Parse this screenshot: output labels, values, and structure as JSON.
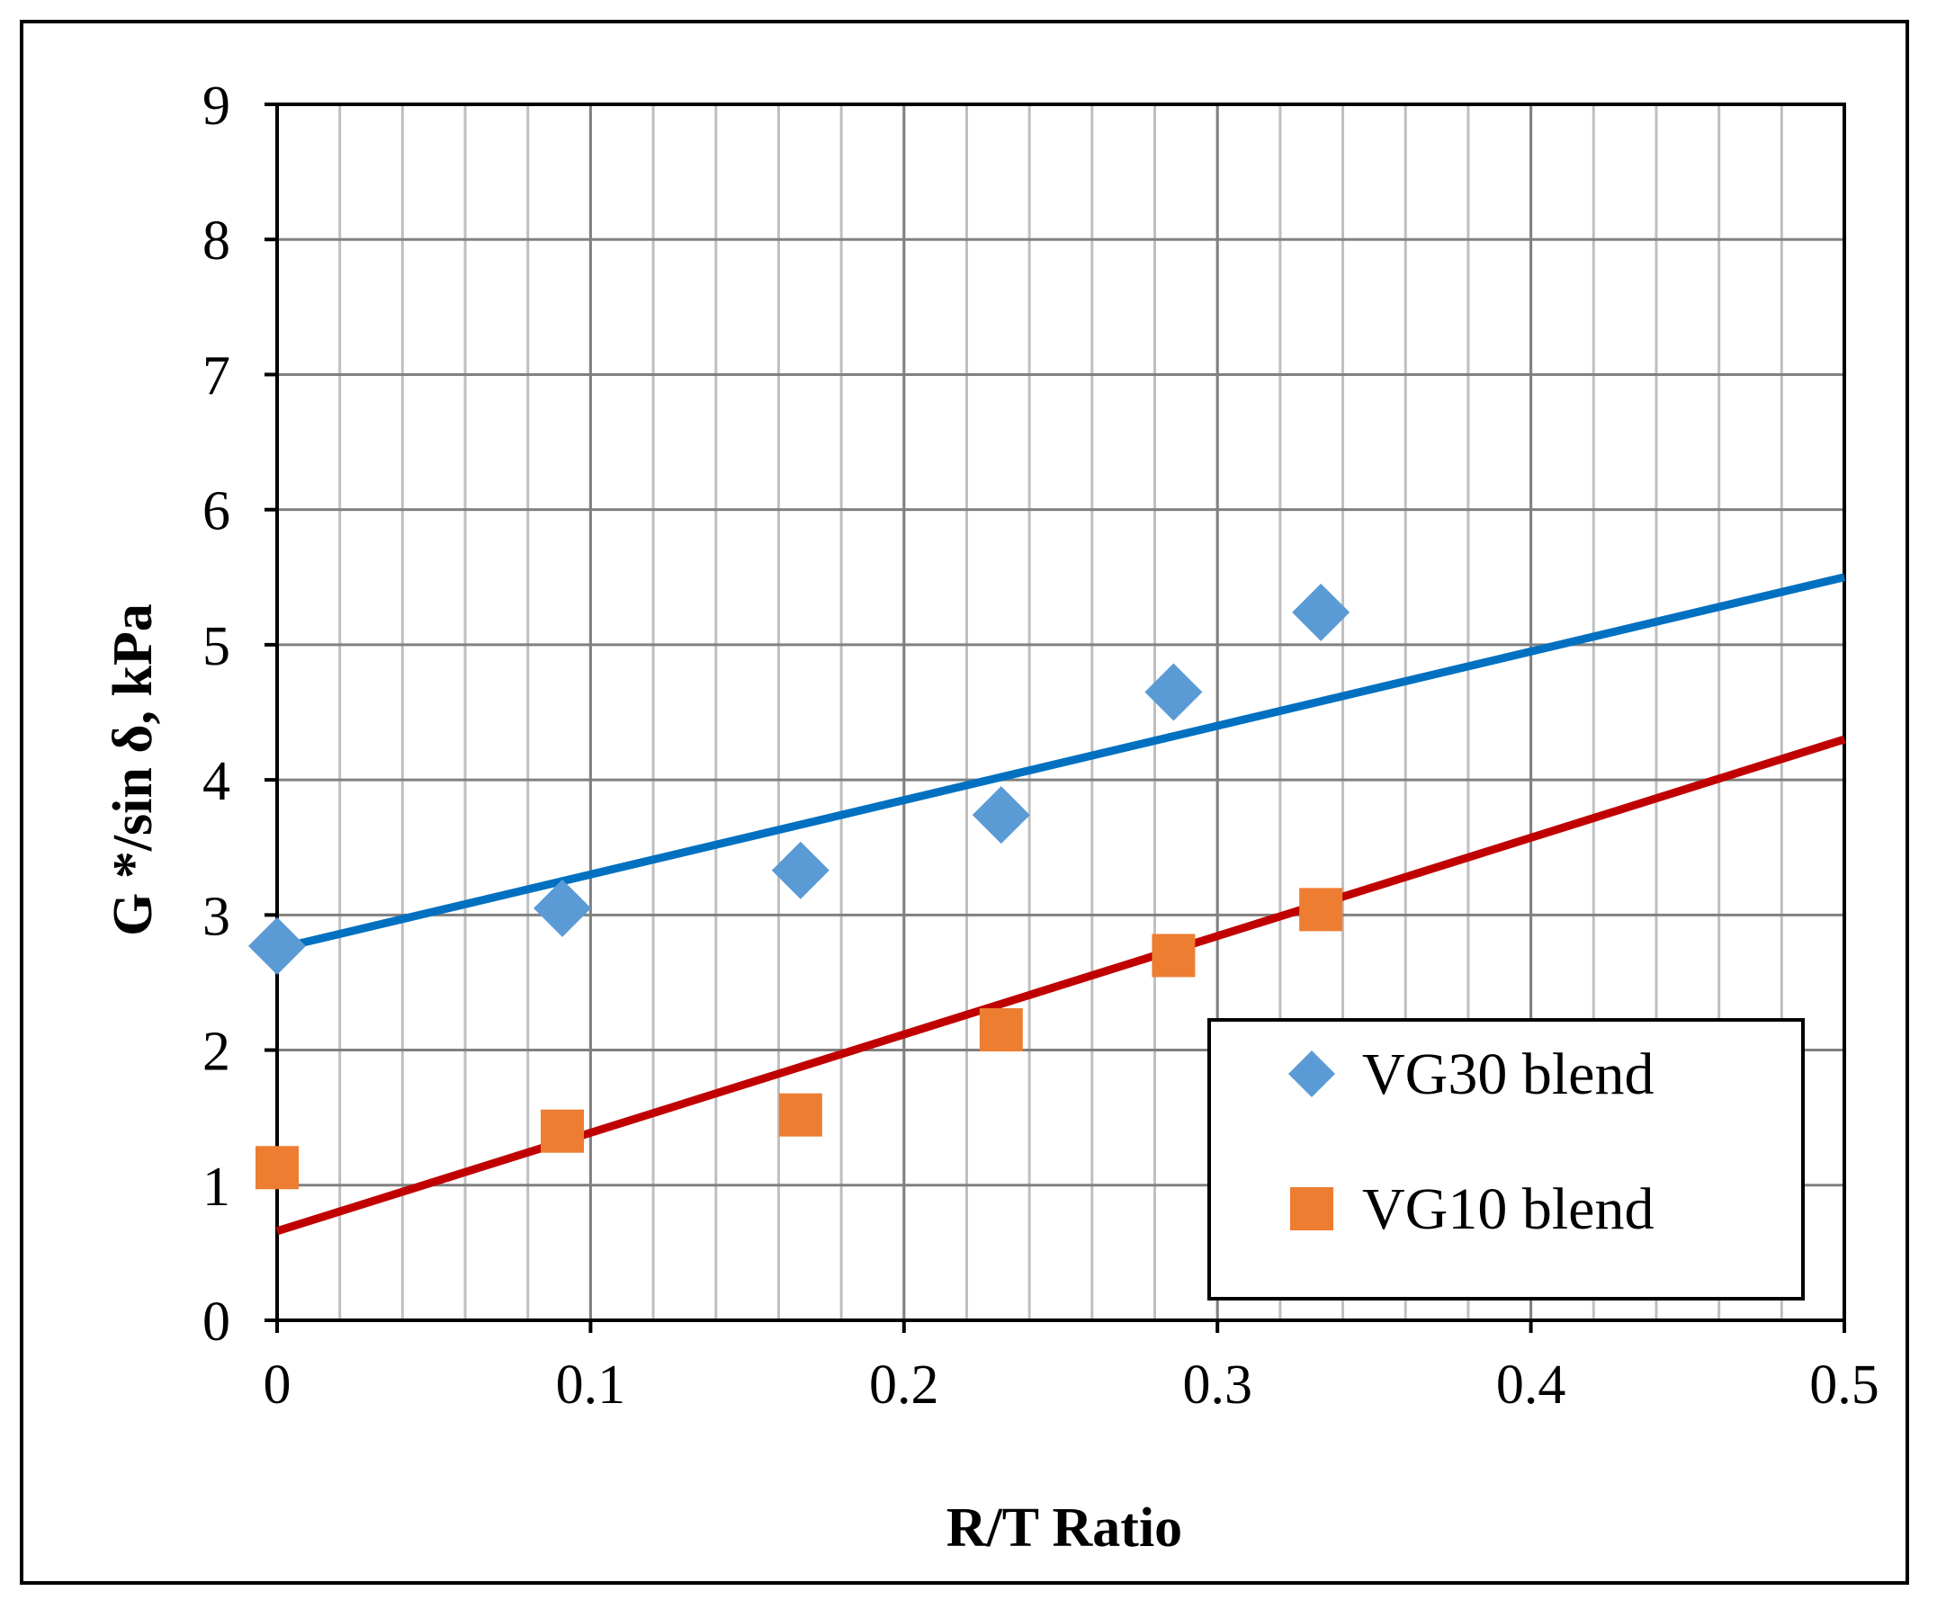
{
  "chart_data": {
    "type": "scatter",
    "title": "",
    "xlabel": "R/T Ratio",
    "ylabel": "G */sin δ, kPa",
    "xlim": [
      0,
      0.5
    ],
    "ylim": [
      0,
      9
    ],
    "x_major_step": 0.1,
    "x_minor_step": 0.02,
    "y_major_step": 1,
    "x_tick_labels": [
      "0",
      "0.1",
      "0.2",
      "0.3",
      "0.4",
      "0.5"
    ],
    "y_tick_labels": [
      "0",
      "1",
      "2",
      "3",
      "4",
      "5",
      "6",
      "7",
      "8",
      "9"
    ],
    "grid": true,
    "legend_position": "bottom-right",
    "series": [
      {
        "name": "VG30 blend",
        "marker": "diamond",
        "color": "#5b9bd5",
        "trendline_color": "#0070c0",
        "x": [
          0,
          0.091,
          0.167,
          0.231,
          0.286,
          0.333
        ],
        "y": [
          2.77,
          3.05,
          3.33,
          3.74,
          4.65,
          5.24
        ],
        "trendline": {
          "x": [
            0,
            0.5
          ],
          "y": [
            2.75,
            5.5
          ]
        }
      },
      {
        "name": "VG10 blend",
        "marker": "square",
        "color": "#ed7d31",
        "trendline_color": "#c00000",
        "x": [
          0,
          0.091,
          0.167,
          0.231,
          0.286,
          0.333
        ],
        "y": [
          1.13,
          1.4,
          1.52,
          2.15,
          2.7,
          3.04
        ],
        "trendline": {
          "x": [
            0,
            0.5
          ],
          "y": [
            0.66,
            4.3
          ]
        }
      }
    ]
  }
}
